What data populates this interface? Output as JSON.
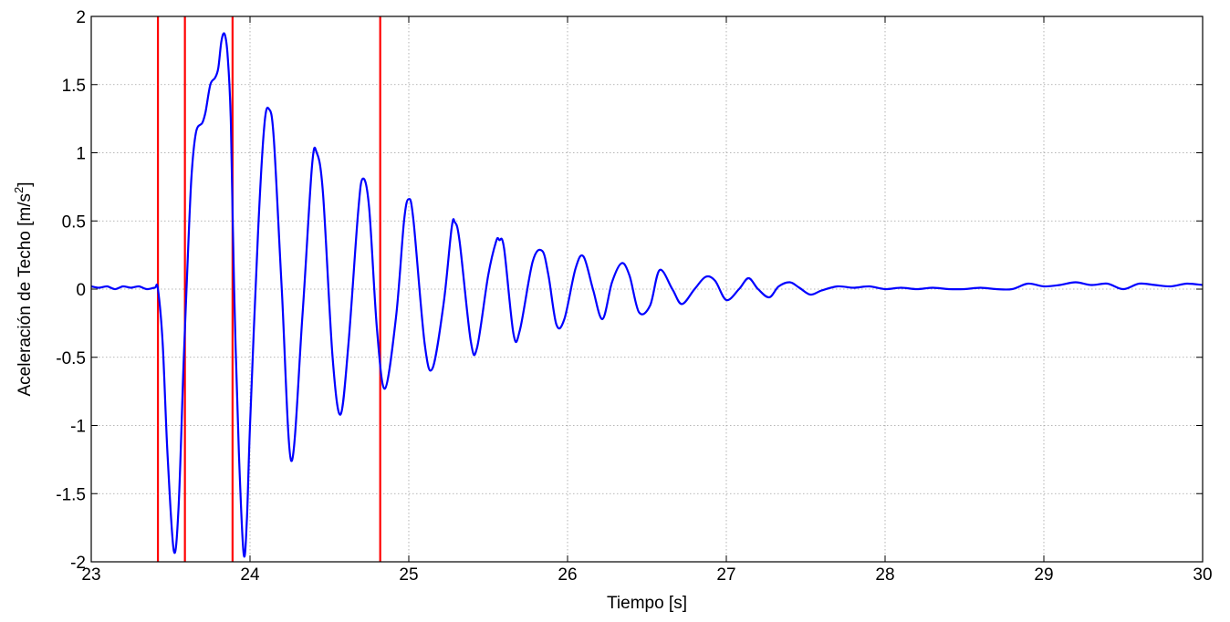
{
  "chart_data": {
    "type": "line",
    "title": "",
    "xlabel": "Tiempo [s]",
    "ylabel_main": "Aceleración de Techo [m/s",
    "ylabel_sup": "2",
    "ylabel_close": "]",
    "xlim": [
      23,
      30
    ],
    "ylim": [
      -2,
      2
    ],
    "xticks": [
      23,
      24,
      25,
      26,
      27,
      28,
      29,
      30
    ],
    "xtick_labels": [
      "23",
      "24",
      "25",
      "26",
      "27",
      "28",
      "29",
      "30"
    ],
    "yticks": [
      -2,
      -1.5,
      -1,
      -0.5,
      0,
      0.5,
      1,
      1.5,
      2
    ],
    "ytick_labels": [
      "-2",
      "-1.5",
      "-1",
      "-0.5",
      "0",
      "0.5",
      "1",
      "1.5",
      "2"
    ],
    "grid": true,
    "series": [
      {
        "color": "#0000ff",
        "x": [
          23.0,
          23.05,
          23.1,
          23.15,
          23.2,
          23.25,
          23.3,
          23.35,
          23.4,
          23.42,
          23.45,
          23.48,
          23.52,
          23.55,
          23.58,
          23.6,
          23.63,
          23.66,
          23.7,
          23.72,
          23.75,
          23.78,
          23.8,
          23.82,
          23.84,
          23.86,
          23.88,
          23.9,
          23.93,
          23.96,
          23.98,
          24.0,
          24.05,
          24.09,
          24.12,
          24.15,
          24.2,
          24.26,
          24.33,
          24.39,
          24.42,
          24.46,
          24.52,
          24.57,
          24.62,
          24.68,
          24.71,
          24.75,
          24.8,
          24.85,
          24.92,
          24.97,
          25.0,
          25.03,
          25.1,
          25.15,
          25.22,
          25.27,
          25.29,
          25.32,
          25.39,
          25.43,
          25.5,
          25.55,
          25.57,
          25.6,
          25.66,
          25.7,
          25.78,
          25.84,
          25.88,
          25.93,
          25.98,
          26.05,
          26.1,
          26.16,
          26.22,
          26.28,
          26.34,
          26.39,
          26.45,
          26.52,
          26.58,
          26.66,
          26.72,
          26.8,
          26.87,
          26.93,
          27.0,
          27.08,
          27.14,
          27.2,
          27.27,
          27.33,
          27.4,
          27.46,
          27.53,
          27.6,
          27.7,
          27.8,
          27.9,
          28.0,
          28.1,
          28.2,
          28.3,
          28.4,
          28.5,
          28.6,
          28.7,
          28.8,
          28.9,
          29.0,
          29.1,
          29.2,
          29.3,
          29.4,
          29.5,
          29.6,
          29.7,
          29.8,
          29.9,
          30.0
        ],
        "y": [
          0.02,
          0.01,
          0.02,
          0.0,
          0.02,
          0.01,
          0.02,
          0.0,
          0.01,
          0.0,
          -0.4,
          -1.2,
          -1.92,
          -1.6,
          -0.6,
          0.0,
          0.8,
          1.15,
          1.22,
          1.3,
          1.5,
          1.55,
          1.62,
          1.82,
          1.87,
          1.7,
          1.2,
          0.0,
          -1.2,
          -1.94,
          -1.7,
          -1.0,
          0.4,
          1.2,
          1.32,
          1.1,
          0.0,
          -1.26,
          -0.2,
          0.9,
          1.0,
          0.7,
          -0.5,
          -0.92,
          -0.4,
          0.55,
          0.81,
          0.6,
          -0.3,
          -0.73,
          -0.2,
          0.5,
          0.66,
          0.5,
          -0.4,
          -0.58,
          -0.1,
          0.45,
          0.49,
          0.35,
          -0.38,
          -0.43,
          0.1,
          0.35,
          0.36,
          0.3,
          -0.33,
          -0.3,
          0.2,
          0.28,
          0.1,
          -0.26,
          -0.22,
          0.15,
          0.24,
          0.0,
          -0.22,
          0.05,
          0.19,
          0.1,
          -0.17,
          -0.12,
          0.14,
          0.0,
          -0.11,
          0.0,
          0.09,
          0.06,
          -0.08,
          0.0,
          0.08,
          0.0,
          -0.06,
          0.02,
          0.05,
          0.01,
          -0.04,
          -0.01,
          0.02,
          0.01,
          0.02,
          0.0,
          0.01,
          0.0,
          0.01,
          0.0,
          0.0,
          0.01,
          0.0,
          0.0,
          0.04,
          0.02,
          0.03,
          0.05,
          0.03,
          0.04,
          0.0,
          0.04,
          0.03,
          0.02,
          0.04,
          0.03
        ]
      }
    ],
    "vlines": {
      "color": "#ff0000",
      "x": [
        23.42,
        23.59,
        23.89,
        24.82
      ]
    }
  }
}
